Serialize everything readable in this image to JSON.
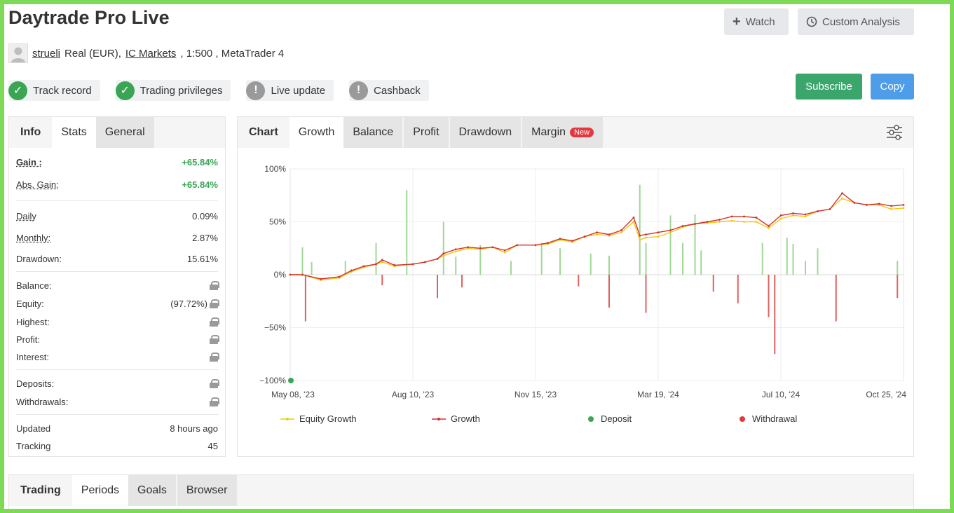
{
  "page": {
    "title": "Daytrade Pro Live",
    "watch_label": "Watch",
    "custom_analysis_label": "Custom Analysis"
  },
  "account": {
    "username": "strueli",
    "type": "Real (EUR),",
    "broker": "IC Markets",
    "details": ", 1:500 , MetaTrader 4"
  },
  "badges": [
    {
      "label": "Track record",
      "status": "ok"
    },
    {
      "label": "Trading privileges",
      "status": "ok"
    },
    {
      "label": "Live update",
      "status": "warn"
    },
    {
      "label": "Cashback",
      "status": "warn"
    }
  ],
  "actions": {
    "subscribe": "Subscribe",
    "copy": "Copy"
  },
  "stats_panel": {
    "tabs": [
      "Info",
      "Stats",
      "General"
    ],
    "gain_label": "Gain :",
    "gain_value": "+65.84%",
    "abs_gain_label": "Abs. Gain:",
    "abs_gain_value": "+65.84%",
    "daily_label": "Daily",
    "daily_value": "0.09%",
    "monthly_label": "Monthly:",
    "monthly_value": "2.87%",
    "drawdown_label": "Drawdown:",
    "drawdown_value": "15.61%",
    "balance_label": "Balance:",
    "equity_label": "Equity:",
    "equity_value": "(97.72%)",
    "highest_label": "Highest:",
    "profit_label": "Profit:",
    "interest_label": "Interest:",
    "deposits_label": "Deposits:",
    "withdrawals_label": "Withdrawals:",
    "updated_label": "Updated",
    "updated_value": "8 hours ago",
    "tracking_label": "Tracking",
    "tracking_value": "45"
  },
  "chart_panel": {
    "tabs": [
      "Chart",
      "Growth",
      "Balance",
      "Profit",
      "Drawdown",
      "Margin"
    ],
    "new_badge": "New"
  },
  "bottom_panel": {
    "tabs": [
      "Trading",
      "Periods",
      "Goals",
      "Browser"
    ]
  },
  "colors": {
    "green": "#3aa655",
    "equity": "#f2c811",
    "growth": "#d32f2f",
    "deposit": "#3aa655",
    "withdrawal": "#e0393e",
    "bar_up": "#9fd895",
    "bar_down": "#e06060"
  },
  "chart_data": {
    "type": "line",
    "title": "",
    "ylim": [
      -100,
      100
    ],
    "yticks": [
      "100%",
      "50%",
      "0%",
      "−50%",
      "−100%"
    ],
    "xticks": [
      "May 08, '23",
      "Aug 10, '23",
      "Nov 15, '23",
      "Mar 19, '24",
      "Jul 10, '24",
      "Oct 25, '24"
    ],
    "legend": [
      "Equity Growth",
      "Growth",
      "Deposit",
      "Withdrawal"
    ],
    "legend_position": "bottom",
    "grid": true,
    "x": [
      0,
      0.02,
      0.05,
      0.08,
      0.1,
      0.12,
      0.14,
      0.15,
      0.17,
      0.2,
      0.22,
      0.24,
      0.25,
      0.27,
      0.29,
      0.31,
      0.33,
      0.35,
      0.37,
      0.4,
      0.42,
      0.44,
      0.46,
      0.48,
      0.5,
      0.52,
      0.54,
      0.56,
      0.57,
      0.58,
      0.6,
      0.62,
      0.64,
      0.66,
      0.68,
      0.7,
      0.72,
      0.74,
      0.76,
      0.78,
      0.8,
      0.82,
      0.84,
      0.86,
      0.88,
      0.9,
      0.92,
      0.94,
      0.96,
      0.98,
      1.0
    ],
    "series": [
      {
        "name": "Growth",
        "values": [
          0,
          0,
          -4,
          -2,
          4,
          8,
          10,
          14,
          9,
          10,
          12,
          15,
          20,
          24,
          26,
          25,
          26,
          23,
          28,
          28,
          30,
          34,
          32,
          36,
          40,
          38,
          42,
          54,
          37,
          38,
          40,
          42,
          46,
          48,
          50,
          52,
          55,
          55,
          54,
          46,
          56,
          58,
          57,
          60,
          62,
          77,
          68,
          66,
          67,
          65,
          66
        ]
      },
      {
        "name": "Equity Growth",
        "values": [
          0,
          0,
          -5,
          -3,
          3,
          7,
          10,
          12,
          8,
          10,
          12,
          15,
          18,
          22,
          25,
          24,
          26,
          21,
          28,
          28,
          29,
          33,
          31,
          36,
          38,
          37,
          40,
          50,
          33,
          35,
          36,
          40,
          45,
          48,
          49,
          50,
          51,
          50,
          50,
          44,
          53,
          56,
          55,
          60,
          62,
          72,
          68,
          66,
          66,
          62,
          63
        ]
      }
    ],
    "bars": {
      "x": [
        0.02,
        0.035,
        0.09,
        0.14,
        0.19,
        0.25,
        0.27,
        0.31,
        0.36,
        0.41,
        0.44,
        0.49,
        0.52,
        0.57,
        0.58,
        0.62,
        0.64,
        0.66,
        0.67,
        0.77,
        0.81,
        0.82,
        0.84,
        0.86,
        0.99
      ],
      "values": [
        26,
        12,
        13,
        30,
        80,
        50,
        17,
        28,
        13,
        30,
        25,
        20,
        18,
        85,
        30,
        56,
        30,
        57,
        23,
        30,
        35,
        29,
        13,
        25,
        13
      ]
    },
    "down_bars": {
      "x": [
        0.025,
        0.15,
        0.24,
        0.28,
        0.47,
        0.52,
        0.58,
        0.69,
        0.73,
        0.78,
        0.79,
        0.89,
        0.99
      ],
      "values": [
        -44,
        -10,
        -22,
        -12,
        -11,
        -31,
        -36,
        -16,
        -27,
        -40,
        -75,
        -44,
        -22
      ]
    },
    "deposit_points": [
      {
        "x": 0,
        "y": -100
      }
    ]
  }
}
